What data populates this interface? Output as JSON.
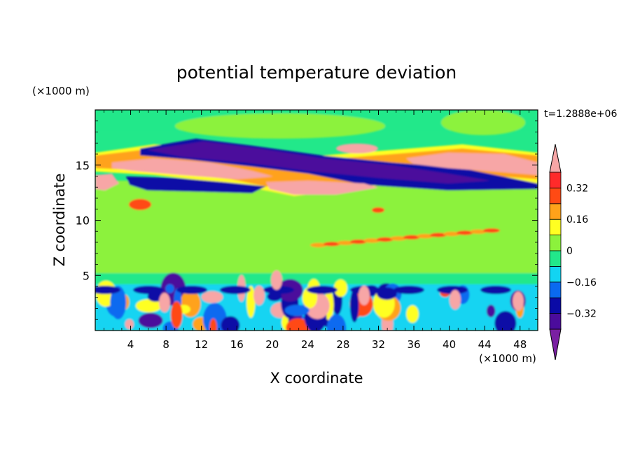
{
  "chart_data": {
    "type": "heatmap",
    "title": "potential temperature deviation",
    "xlabel": "X coordinate",
    "ylabel": "Z coordinate",
    "x_unit": "(×1000 m)",
    "y_unit": "(×1000 m)",
    "time_label": "t=1.2888e+06",
    "xlim": [
      0,
      50
    ],
    "ylim": [
      0,
      20
    ],
    "x_ticks": [
      4,
      8,
      12,
      16,
      20,
      24,
      28,
      32,
      36,
      40,
      44,
      48
    ],
    "y_ticks": [
      5,
      10,
      15
    ],
    "colorbar": {
      "levels": [
        -0.4,
        -0.32,
        -0.24,
        -0.16,
        -0.08,
        0,
        0.08,
        0.16,
        0.24,
        0.32,
        0.4
      ],
      "tick_labels": [
        "0.32",
        "0.16",
        "0",
        "−0.16",
        "−0.32"
      ],
      "tick_values": [
        0.32,
        0.16,
        0,
        -0.16,
        -0.32
      ],
      "extend": "both",
      "colors": [
        "#7a1fa2",
        "#4b0c9c",
        "#0a0aa6",
        "#0a6af0",
        "#12d4f2",
        "#22e88a",
        "#8cf23c",
        "#ffff22",
        "#ffa21a",
        "#ff4a14",
        "#ff2a2a",
        "#f7a6a6"
      ]
    },
    "grid": false,
    "legend": "colorbar-right"
  }
}
